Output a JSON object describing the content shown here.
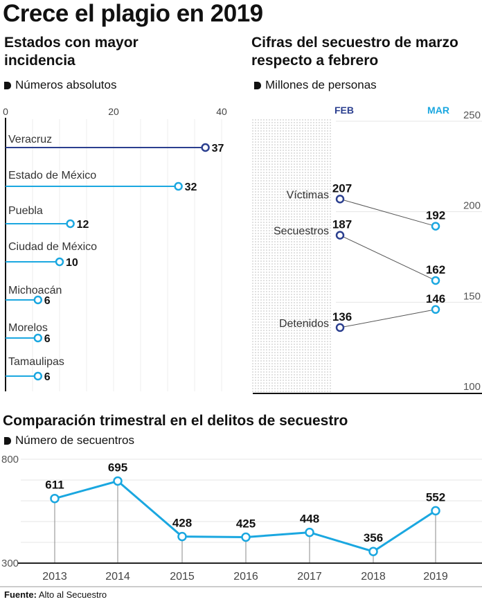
{
  "title": "Crece el plagio en 2019",
  "colors": {
    "dark_blue": "#2b3f8f",
    "light_blue": "#1aa7e0",
    "text": "#111111"
  },
  "source": {
    "label": "Fuente:",
    "text": "Alto al Secuestro"
  },
  "chart_data": [
    {
      "type": "bar",
      "title": "Estados con mayor incidencia",
      "subtitle": "Números absolutos",
      "orientation": "horizontal",
      "categories": [
        "Veracruz",
        "Estado de México",
        "Puebla",
        "Ciudad de México",
        "Michoacán",
        "Morelos",
        "Tamaulipas"
      ],
      "values": [
        37,
        32,
        12,
        10,
        6,
        6,
        6
      ],
      "xlim": [
        0,
        40
      ],
      "xticks": [
        "0",
        "20",
        "40"
      ],
      "grid": true
    },
    {
      "type": "line",
      "title": "Cifras del secuestro de marzo respecto a febrero",
      "subtitle": "Millones de personas",
      "categories": [
        "FEB",
        "MAR"
      ],
      "series": [
        {
          "name": "Víctimas",
          "values": [
            207,
            192
          ]
        },
        {
          "name": "Secuestros",
          "values": [
            187,
            162
          ]
        },
        {
          "name": "Detenidos",
          "values": [
            136,
            146
          ]
        }
      ],
      "ylim": [
        100,
        250
      ],
      "yticks": [
        "100",
        "150",
        "200",
        "250"
      ],
      "grid": true
    },
    {
      "type": "line",
      "title": "Comparación trimestral en el delitos de secuestro",
      "subtitle": "Número de secuentros",
      "categories": [
        "2013",
        "2014",
        "2015",
        "2016",
        "2017",
        "2018",
        "2019"
      ],
      "values": [
        611,
        695,
        428,
        425,
        448,
        356,
        552
      ],
      "ylim": [
        300,
        800
      ],
      "yticks": [
        "300",
        "800"
      ],
      "grid": true
    }
  ]
}
